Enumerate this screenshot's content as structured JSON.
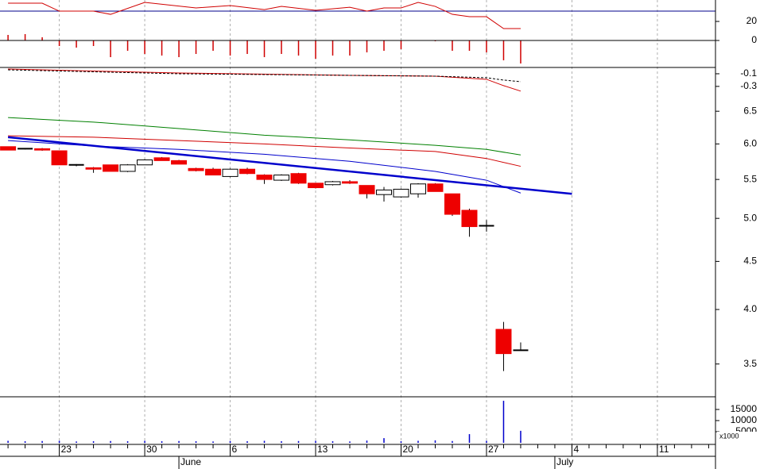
{
  "xaxis": {
    "xlim": [
      -0.47,
      41.4
    ],
    "xticks": [
      {
        "value": 3,
        "label": "23"
      },
      {
        "value": 8,
        "label": "30"
      },
      {
        "value": 13,
        "label": "6"
      },
      {
        "value": 18,
        "label": "13"
      },
      {
        "value": 23,
        "label": "20"
      },
      {
        "value": 28,
        "label": "27"
      },
      {
        "value": 33,
        "label": "4"
      },
      {
        "value": 38,
        "label": "11"
      }
    ],
    "months": [
      {
        "value": 10,
        "label": "June"
      },
      {
        "value": 32,
        "label": "July"
      }
    ]
  },
  "chart_data": [
    {
      "type": "line",
      "x": [
        0,
        2,
        3,
        5,
        6,
        8,
        11,
        13,
        15,
        16,
        18,
        20,
        21,
        22,
        23,
        24,
        25,
        26,
        27,
        28,
        29,
        30
      ],
      "series": [
        {
          "color": "#d00000",
          "values": [
            37.7,
            37.7,
            30,
            30,
            26.9,
            38.5,
            33.1,
            35.4,
            31.5,
            34.6,
            30.8,
            33.8,
            30,
            33.1,
            33.1,
            38.5,
            34.6,
            26.9,
            24.6,
            24.6,
            13.1,
            13.1
          ]
        }
      ],
      "ylim": [
        2.3,
        40.8
      ],
      "yticks": [
        20
      ],
      "hline": 30,
      "hline_color": "#00008b"
    },
    {
      "type": "bar",
      "x": [
        0,
        1,
        2,
        3,
        4,
        5,
        6,
        7,
        8,
        9,
        10,
        11,
        12,
        13,
        14,
        15,
        16,
        17,
        18,
        19,
        20,
        21,
        22,
        23,
        24,
        25,
        26,
        27,
        28,
        29,
        30
      ],
      "values": [
        7,
        8,
        4,
        -7,
        -9,
        -7,
        -21,
        -13,
        -17,
        -19,
        -21,
        -17,
        -13,
        -19,
        -17,
        -21,
        -17,
        -19,
        -23,
        -19,
        -19,
        -15,
        -13,
        -11,
        0,
        -1,
        -13,
        -13,
        -15,
        -25,
        -29
      ],
      "color": "#d00000",
      "ylim": [
        -34,
        13
      ],
      "yticks": [
        0
      ]
    },
    {
      "type": "line",
      "x": [
        0,
        10,
        20,
        25,
        28,
        29,
        30
      ],
      "series": [
        {
          "color": "#d00000",
          "values": [
            -0.025,
            -0.088,
            -0.125,
            -0.138,
            -0.188,
            -0.288,
            -0.375
          ]
        },
        {
          "color": "#000000",
          "dashed": true,
          "values": [
            -0.038,
            -0.1,
            -0.125,
            -0.138,
            -0.163,
            -0.2,
            -0.225
          ]
        }
      ],
      "ylim": [
        -0.44,
        0
      ],
      "yticks": [
        -0.1,
        -0.3
      ]
    },
    {
      "type": "candlestick",
      "log": true,
      "x": [
        0,
        1,
        2,
        3,
        4,
        5,
        6,
        7,
        8,
        9,
        10,
        11,
        12,
        13,
        14,
        15,
        16,
        17,
        18,
        19,
        20,
        21,
        22,
        23,
        24,
        25,
        26,
        27,
        28,
        29,
        30
      ],
      "open": [
        5.96,
        5.93,
        5.93,
        5.9,
        5.7,
        5.66,
        5.7,
        5.61,
        5.7,
        5.8,
        5.76,
        5.65,
        5.64,
        5.54,
        5.64,
        5.56,
        5.49,
        5.58,
        5.45,
        5.43,
        5.47,
        5.42,
        5.3,
        5.27,
        5.31,
        5.44,
        5.31,
        5.1,
        4.91,
        3.81,
        3.62
      ],
      "high": [
        5.96,
        5.94,
        5.94,
        5.9,
        5.71,
        5.67,
        5.7,
        5.71,
        5.78,
        5.81,
        5.77,
        5.66,
        5.66,
        5.65,
        5.66,
        5.57,
        5.57,
        5.59,
        5.45,
        5.48,
        5.49,
        5.42,
        5.4,
        5.38,
        5.45,
        5.45,
        5.31,
        5.12,
        4.98,
        3.88,
        3.69
      ],
      "low": [
        5.91,
        5.92,
        5.9,
        5.7,
        5.68,
        5.59,
        5.61,
        5.6,
        5.7,
        5.76,
        5.71,
        5.61,
        5.56,
        5.53,
        5.57,
        5.44,
        5.48,
        5.44,
        5.38,
        5.42,
        5.44,
        5.25,
        5.21,
        5.26,
        5.26,
        5.34,
        5.03,
        4.78,
        4.84,
        3.44,
        3.62
      ],
      "close": [
        5.91,
        5.93,
        5.91,
        5.7,
        5.7,
        5.64,
        5.61,
        5.7,
        5.77,
        5.76,
        5.71,
        5.62,
        5.56,
        5.64,
        5.58,
        5.5,
        5.56,
        5.45,
        5.39,
        5.47,
        5.45,
        5.31,
        5.36,
        5.37,
        5.44,
        5.34,
        5.05,
        4.9,
        4.91,
        3.59,
        3.62
      ],
      "up_color": "#ffffff",
      "down_color": "#ee0000",
      "overlays": [
        {
          "color": "#008000",
          "x": [
            0,
            5,
            10,
            15,
            20,
            25,
            28,
            30
          ],
          "values": [
            6.4,
            6.33,
            6.23,
            6.13,
            6.06,
            5.98,
            5.92,
            5.84
          ]
        },
        {
          "color": "#d00000",
          "x": [
            0,
            5,
            10,
            15,
            20,
            25,
            28,
            30
          ],
          "values": [
            6.12,
            6.1,
            6.05,
            6.0,
            5.94,
            5.89,
            5.79,
            5.68
          ]
        },
        {
          "color": "#0000cc",
          "x": [
            0,
            5,
            10,
            15,
            20,
            25,
            28,
            30
          ],
          "values": [
            6.05,
            5.97,
            5.92,
            5.85,
            5.75,
            5.61,
            5.49,
            5.32
          ]
        },
        {
          "color": "#0000cc",
          "thick": true,
          "x": [
            0,
            33
          ],
          "values": [
            6.1,
            5.31
          ]
        }
      ],
      "ylim": [
        3.23,
        6.76
      ],
      "yticks": [
        6.5,
        {
          "value": 6,
          "label": "6.0"
        },
        5.5,
        {
          "value": 5,
          "label": "5.0"
        },
        4.5,
        {
          "value": 4,
          "label": "4.0"
        },
        3.5
      ]
    },
    {
      "type": "bar",
      "x": [
        0,
        1,
        2,
        3,
        4,
        5,
        6,
        7,
        8,
        9,
        10,
        11,
        12,
        13,
        14,
        15,
        16,
        17,
        18,
        19,
        20,
        21,
        22,
        23,
        24,
        25,
        26,
        27,
        28,
        29,
        30
      ],
      "values": [
        900,
        700,
        800,
        900,
        600,
        700,
        800,
        700,
        900,
        700,
        800,
        700,
        600,
        800,
        700,
        900,
        700,
        800,
        900,
        700,
        600,
        1000,
        2100,
        700,
        900,
        1100,
        800,
        3900,
        900,
        18900,
        5400
      ],
      "color": "#0000cc",
      "ylim": [
        0,
        20700
      ],
      "yticks": [
        15000,
        10000,
        5000
      ],
      "unit_label": "x1000"
    }
  ]
}
